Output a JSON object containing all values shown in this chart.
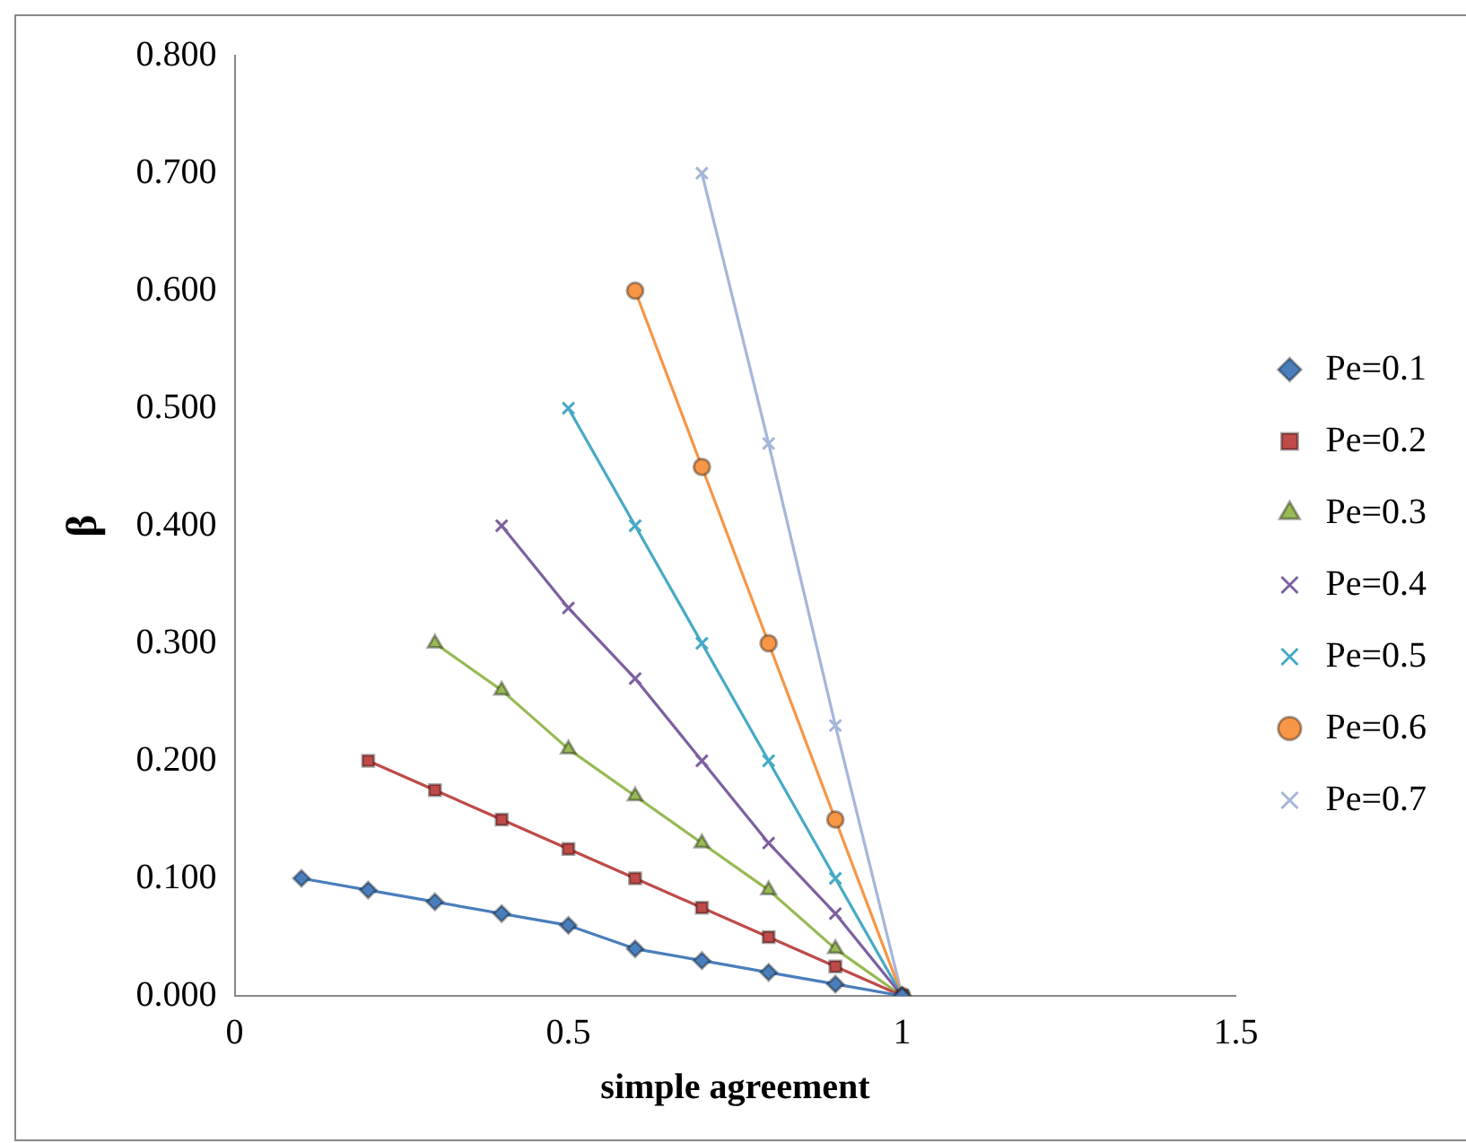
{
  "chart_data": {
    "type": "line",
    "xlabel": "simple agreement",
    "ylabel": "β",
    "xlim": [
      0,
      1.5
    ],
    "xticks": [
      0,
      0.5,
      1,
      1.5
    ],
    "ylim": [
      0,
      0.8
    ],
    "yticks": [
      {
        "value": 0,
        "label": "0.000"
      },
      {
        "value": 0.1,
        "label": "0.100"
      },
      {
        "value": 0.2,
        "label": "0.200"
      },
      {
        "value": 0.3,
        "label": "0.300"
      },
      {
        "value": 0.4,
        "label": "0.400"
      },
      {
        "value": 0.5,
        "label": "0.500"
      },
      {
        "value": 0.6,
        "label": "0.600"
      },
      {
        "value": 0.7,
        "label": "0.700"
      },
      {
        "value": 0.8,
        "label": "0.800"
      }
    ],
    "grid": false,
    "legend": "right",
    "line_style": "solid",
    "series": [
      {
        "name": "Pe=0.1",
        "color": "#4a7ebb",
        "marker": "diamond",
        "x": [
          0.1,
          0.2,
          0.3,
          0.4,
          0.5,
          0.6,
          0.7,
          0.8,
          0.9,
          1
        ],
        "values": [
          0.1,
          0.09,
          0.08,
          0.07,
          0.06,
          0.04,
          0.03,
          0.02,
          0.01,
          0
        ]
      },
      {
        "name": "Pe=0.2",
        "color": "#be4b48",
        "marker": "square",
        "x": [
          0.2,
          0.3,
          0.4,
          0.5,
          0.6,
          0.7,
          0.8,
          0.9,
          1
        ],
        "values": [
          0.2,
          0.175,
          0.15,
          0.125,
          0.1,
          0.075,
          0.05,
          0.025,
          0
        ]
      },
      {
        "name": "Pe=0.3",
        "color": "#98b954",
        "marker": "triangle",
        "x": [
          0.3,
          0.4,
          0.5,
          0.6,
          0.7,
          0.8,
          0.9,
          1
        ],
        "values": [
          0.3,
          0.26,
          0.21,
          0.17,
          0.13,
          0.09,
          0.04,
          0
        ]
      },
      {
        "name": "Pe=0.4",
        "color": "#7d60a0",
        "marker": "cross",
        "x": [
          0.4,
          0.5,
          0.6,
          0.7,
          0.8,
          0.9,
          1
        ],
        "values": [
          0.4,
          0.33,
          0.27,
          0.2,
          0.13,
          0.07,
          0
        ]
      },
      {
        "name": "Pe=0.5",
        "color": "#46aac5",
        "marker": "cross",
        "x": [
          0.5,
          0.6,
          0.7,
          0.8,
          0.9,
          1
        ],
        "values": [
          0.5,
          0.4,
          0.3,
          0.2,
          0.1,
          0
        ]
      },
      {
        "name": "Pe=0.6",
        "color": "#f79646",
        "marker": "circle",
        "x": [
          0.6,
          0.7,
          0.8,
          0.9,
          1
        ],
        "values": [
          0.6,
          0.45,
          0.3,
          0.15,
          0
        ]
      },
      {
        "name": "Pe=0.7",
        "color": "#a5b6d8",
        "marker": "cross",
        "x": [
          0.7,
          0.8,
          0.9,
          1
        ],
        "values": [
          0.7,
          0.47,
          0.23,
          0
        ]
      }
    ]
  }
}
